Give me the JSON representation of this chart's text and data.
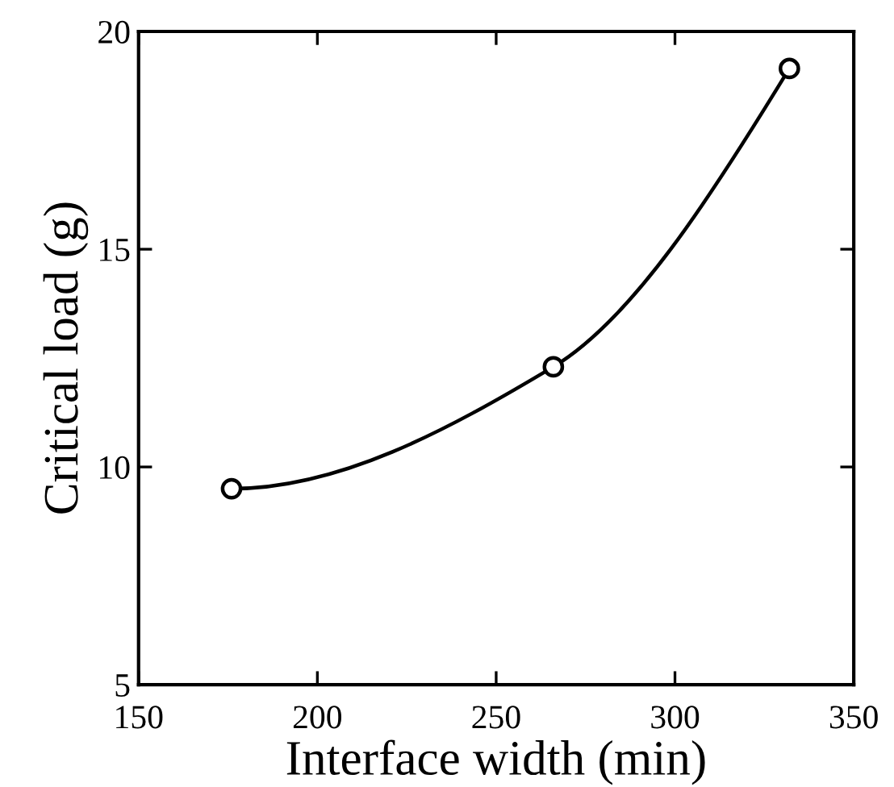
{
  "chart_data": {
    "type": "line",
    "xlabel": "Interface width (min)",
    "ylabel": "Critical load (g)",
    "x": [
      176,
      266,
      332
    ],
    "series": [
      {
        "color": "#000000",
        "values": [
          9.5,
          12.3,
          19.15
        ]
      }
    ],
    "xlim": [
      150,
      350
    ],
    "xticks": [
      150,
      200,
      250,
      300,
      350
    ],
    "ylim": [
      5,
      20
    ],
    "yticks": [
      5,
      10,
      15,
      20
    ],
    "grid": false,
    "legend": false,
    "marker": "circle",
    "line_style": "solid"
  }
}
